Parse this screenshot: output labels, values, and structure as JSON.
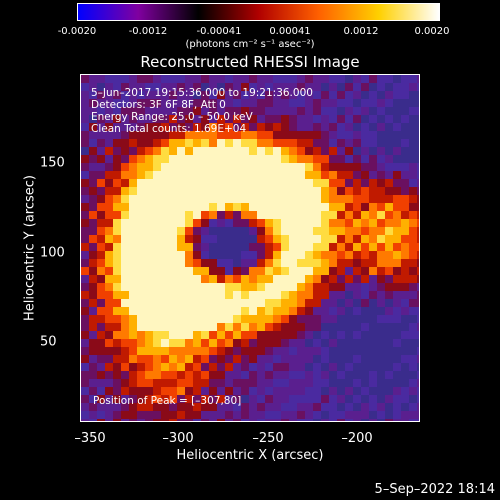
{
  "colorbar": {
    "ticks": [
      "-0.0020",
      "-0.0012",
      "-0.00041",
      "0.00041",
      "0.0012",
      "0.0020"
    ],
    "units": "(photons cm⁻² s⁻¹ asec⁻²)",
    "colors": [
      "#0000ff",
      "#8000a0",
      "#000000",
      "#b00000",
      "#ff6000",
      "#ffd000",
      "#ffffff"
    ]
  },
  "title": "Reconstructed RHESSI Image",
  "overlay": {
    "time_range": "5–Jun–2017 19:15:36.000 to 19:21:36.000",
    "detectors": "Detectors: 3F 6F 8F, Att 0",
    "energy": "Energy Range: 25.0 – 50.0 keV",
    "clean": "Clean    Total counts: 1.69E+04",
    "peak": "Position of Peak = [–307,80]"
  },
  "axes": {
    "xlabel": "Heliocentric X (arcsec)",
    "ylabel": "Heliocentric Y (arcsec)",
    "xticks": [
      "–350",
      "–300",
      "–250",
      "–200"
    ],
    "yticks": [
      "150",
      "100",
      "50"
    ]
  },
  "footer": "5–Sep–2022 18:14"
}
